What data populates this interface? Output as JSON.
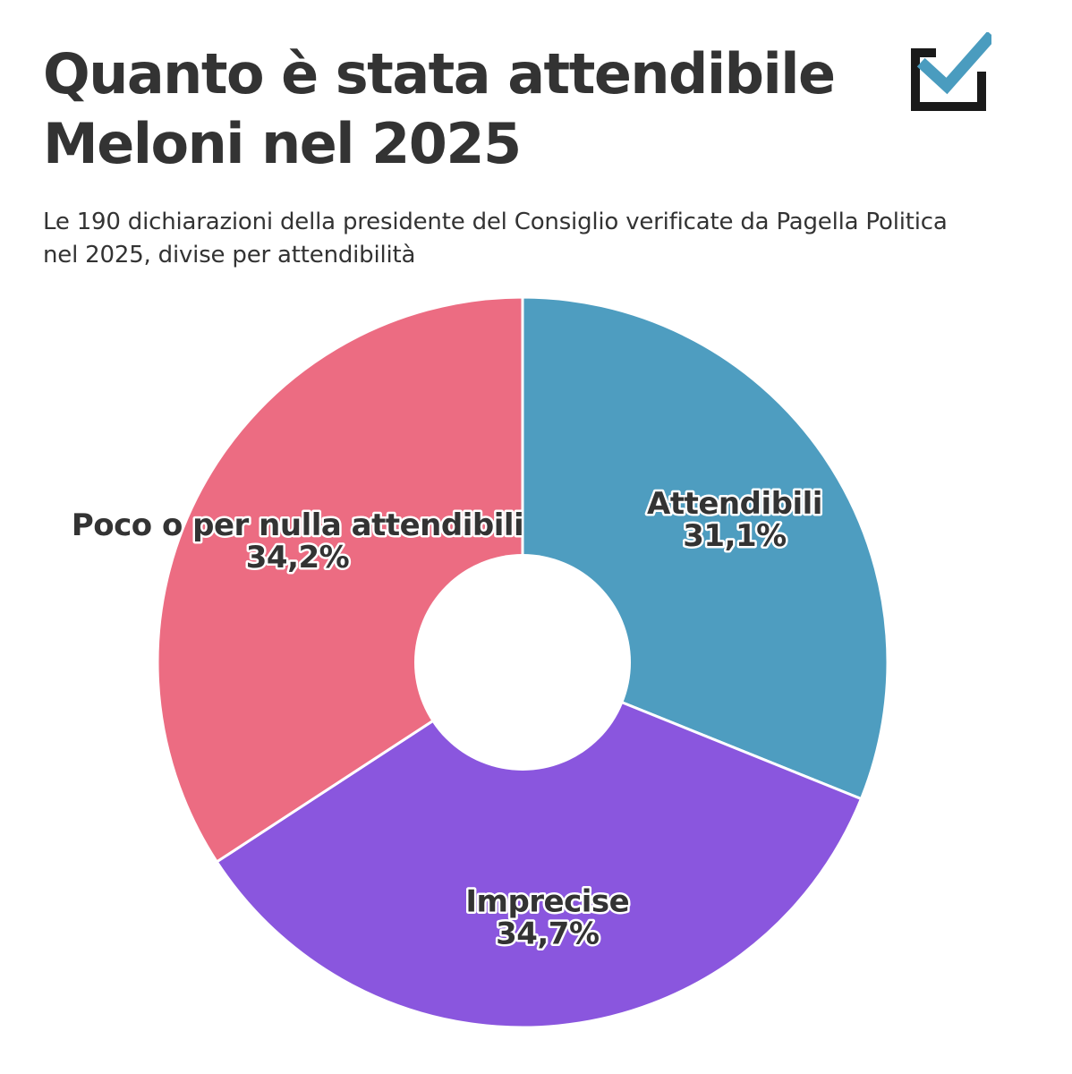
{
  "header": {
    "title": "Quanto è stata attendibile Meloni nel 2025",
    "subtitle": "Le 190 dichiarazioni della presidente del Consiglio verificate da Pagella Politica nel 2025, divise per attendibilità"
  },
  "logo": {
    "icon": "checkbox-check-icon",
    "frame_color": "#1a1a1a",
    "check_color": "#4a9cbf"
  },
  "chart_data": {
    "type": "pie",
    "donut": true,
    "start_angle_deg": 0,
    "direction": "clockwise",
    "slices": [
      {
        "name": "Attendibili",
        "value": 31.1,
        "label": "31,1%",
        "color": "#4e9dc0"
      },
      {
        "name": "Imprecise",
        "value": 34.7,
        "label": "34,7%",
        "color": "#8a56de"
      },
      {
        "name": "Poco o per nulla attendibili",
        "value": 34.2,
        "label": "34,2%",
        "color": "#ec6c82"
      }
    ]
  }
}
